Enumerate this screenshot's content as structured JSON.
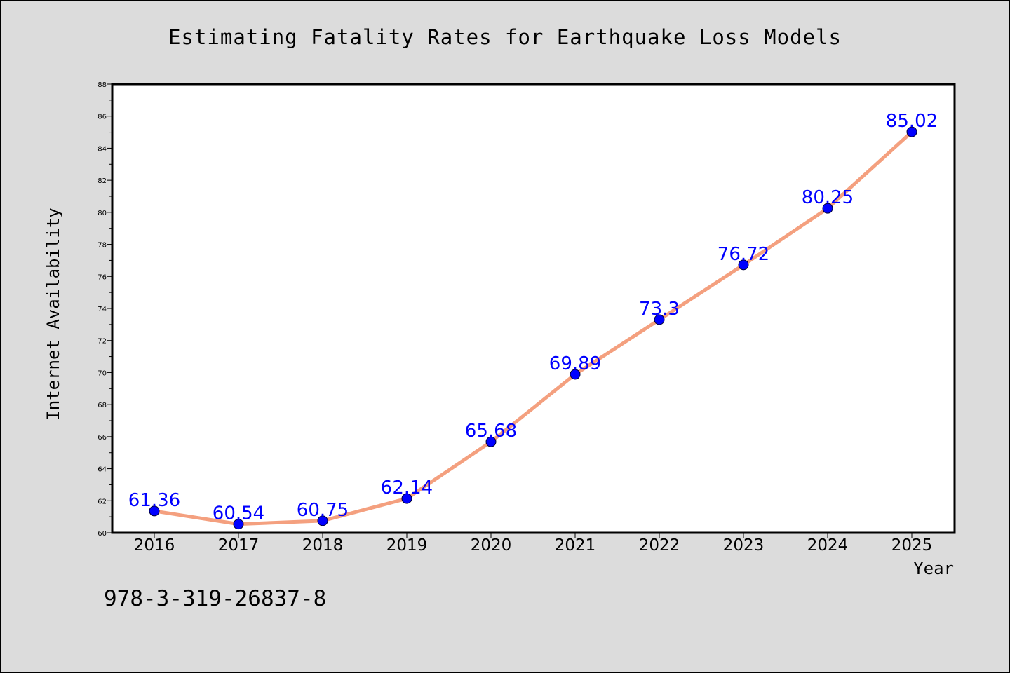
{
  "chart_data": {
    "type": "line",
    "title": "Estimating Fatality Rates for Earthquake Loss Models",
    "xlabel": "Year",
    "ylabel": "Internet Availability",
    "categories": [
      "2016",
      "2017",
      "2018",
      "2019",
      "2020",
      "2021",
      "2022",
      "2023",
      "2024",
      "2025"
    ],
    "series": [
      {
        "values": [
          61.36,
          60.54,
          60.75,
          62.14,
          65.68,
          69.89,
          73.3,
          76.72,
          80.25,
          85.02
        ],
        "labels": [
          "61.36",
          "60.54",
          "60.75",
          "62.14",
          "65.68",
          "69.89",
          "73.3",
          "76.72",
          "80.25",
          "85.02"
        ],
        "line_color": "#f4a07f",
        "marker_color": "#0000ff"
      }
    ],
    "ylim": [
      60,
      88
    ],
    "yticks": [
      60,
      62,
      64,
      66,
      68,
      70,
      72,
      74,
      76,
      78,
      80,
      82,
      84,
      86,
      88
    ],
    "grid": false,
    "legend": "none"
  },
  "caption": "978-3-319-26837-8",
  "colors": {
    "background": "#dcdcdc",
    "plot_area": "#ffffff",
    "line": "#f4a07f",
    "marker": "#0000ff",
    "data_label": "#0000ff"
  }
}
